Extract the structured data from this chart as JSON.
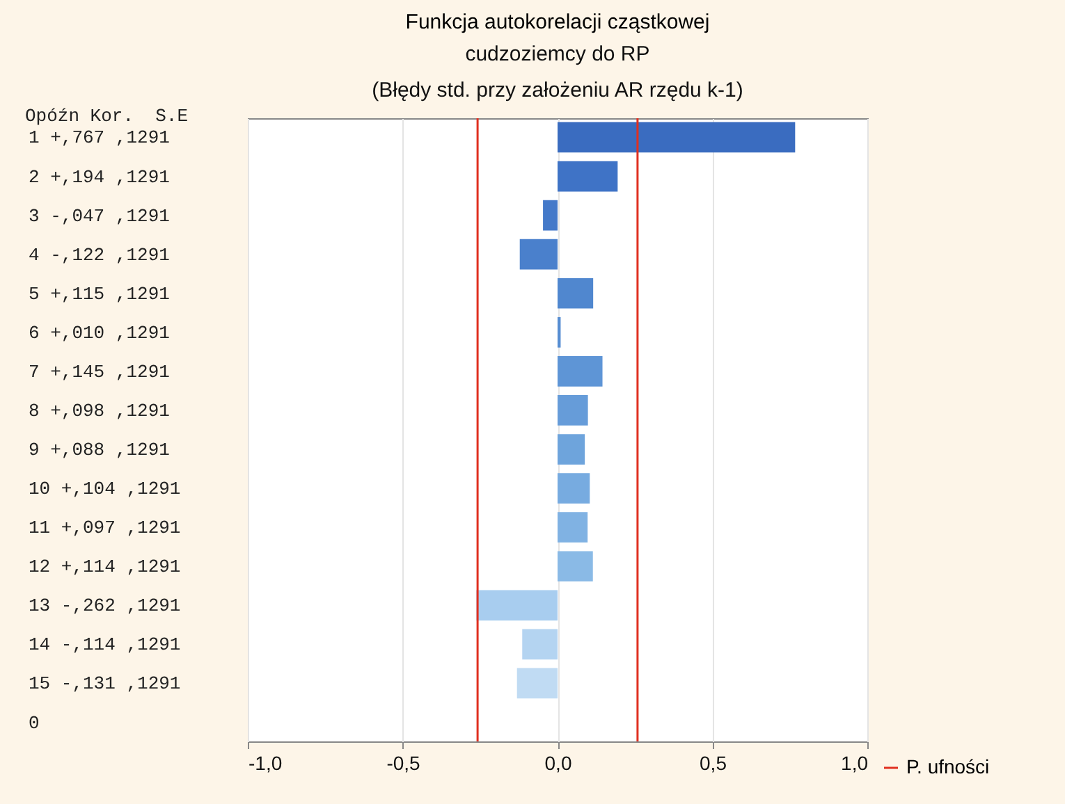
{
  "chart_data": {
    "type": "bar",
    "orientation": "horizontal",
    "title": "Funkcja autokorelacji cząstkowej",
    "subtitle": "cudzoziemcy do RP\n(Błędy std. przy założeniu AR rzędu k-1)",
    "annotations": [
      "Opóźn Kor.  S.E"
    ],
    "categories": [
      "1  +,767 ,1291",
      "2  +,194 ,1291",
      "3  -,047 ,1291",
      "4  -,122 ,1291",
      "5  +,115 ,1291",
      "6  +,010 ,1291",
      "7  +,145 ,1291",
      "8  +,098 ,1291",
      "9  +,088 ,1291",
      "10 +,104 ,1291",
      "11 +,097 ,1291",
      "12 +,114 ,1291",
      "13 -,262 ,1291",
      "14 -,114 ,1291",
      "15 -,131 ,1291",
      "0"
    ],
    "values": [
      0.767,
      0.194,
      -0.047,
      -0.122,
      0.115,
      0.01,
      0.145,
      0.098,
      0.088,
      0.104,
      0.097,
      0.114,
      -0.262,
      -0.114,
      -0.131,
      null
    ],
    "colors": [
      "#3a6cc0",
      "#3f73c6",
      "#4479c9",
      "#4a80cc",
      "#5087cf",
      "#578ed2",
      "#5e95d6",
      "#669cd9",
      "#6ea4dc",
      "#77abe0",
      "#80b2e3",
      "#8abae6",
      "#a8cdef",
      "#b4d4f1",
      "#c0dbf3",
      "#c8e0f4"
    ],
    "xlim": [
      -1,
      1
    ],
    "xticks": [
      {
        "value": -1,
        "label": "-1,0"
      },
      {
        "value": -0.5,
        "label": "-0,5"
      },
      {
        "value": 0,
        "label": "0,0"
      },
      {
        "value": 0.5,
        "label": "0,5"
      },
      {
        "value": 1,
        "label": "1,0"
      }
    ],
    "ref_lines": [
      {
        "axis": "x",
        "value": -0.2582,
        "label": "P. ufności",
        "color": "#e03020"
      },
      {
        "axis": "x",
        "value": 0.2582,
        "color": "#e03020"
      }
    ],
    "grid": "x",
    "legend": "bottom right"
  }
}
